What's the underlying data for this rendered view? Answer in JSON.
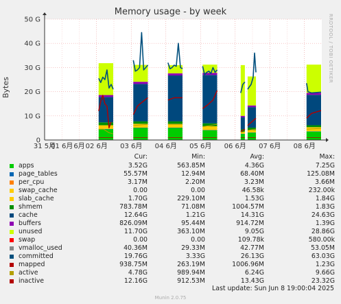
{
  "title": "Memory usage - by week",
  "watermark": "RRDTOOL / TOBI OETIKER",
  "ylabel": "Bytes",
  "legend_headers": {
    "cur": "Cur:",
    "min": "Min:",
    "avg": "Avg:",
    "max": "Max:"
  },
  "legend": [
    {
      "name": "apps",
      "color": "#00cc00",
      "cur": "3.52G",
      "min": "563.85M",
      "avg": "4.36G",
      "max": "7.25G"
    },
    {
      "name": "page_tables",
      "color": "#0066b3",
      "cur": "55.57M",
      "min": "12.94M",
      "avg": "68.40M",
      "max": "125.08M"
    },
    {
      "name": "per_cpu",
      "color": "#ff8000",
      "cur": "3.17M",
      "min": "2.20M",
      "avg": "3.23M",
      "max": "3.66M"
    },
    {
      "name": "swap_cache",
      "color": "#ffcc00",
      "cur": "0.00",
      "min": "0.00",
      "avg": "46.58k",
      "max": "232.00k"
    },
    {
      "name": "slab_cache",
      "color": "#ffcc00",
      "cur": "1.70G",
      "min": "229.10M",
      "avg": "1.53G",
      "max": "1.84G"
    },
    {
      "name": "shmem",
      "color": "#008f00",
      "cur": "783.78M",
      "min": "71.08M",
      "avg": "1004.57M",
      "max": "1.83G"
    },
    {
      "name": "cache",
      "color": "#00487d",
      "cur": "12.64G",
      "min": "1.21G",
      "avg": "14.31G",
      "max": "24.63G"
    },
    {
      "name": "buffers",
      "color": "#8f00b3",
      "cur": "826.09M",
      "min": "95.44M",
      "avg": "914.72M",
      "max": "1.39G"
    },
    {
      "name": "unused",
      "color": "#ccff00",
      "cur": "11.70G",
      "min": "363.10M",
      "avg": "9.05G",
      "max": "28.86G"
    },
    {
      "name": "swap",
      "color": "#ff0000",
      "cur": "0.00",
      "min": "0.00",
      "avg": "109.78k",
      "max": "580.00k"
    },
    {
      "name": "vmalloc_used",
      "color": "#888888",
      "cur": "40.36M",
      "min": "29.33M",
      "avg": "42.77M",
      "max": "53.05M"
    },
    {
      "name": "committed",
      "color": "#004f7d",
      "cur": "19.76G",
      "min": "3.33G",
      "avg": "26.13G",
      "max": "63.03G"
    },
    {
      "name": "mapped",
      "color": "#b30000",
      "cur": "938.75M",
      "min": "263.19M",
      "avg": "1006.96M",
      "max": "1.23G"
    },
    {
      "name": "active",
      "color": "#b39f00",
      "cur": "4.78G",
      "min": "989.94M",
      "avg": "6.24G",
      "max": "9.66G"
    },
    {
      "name": "inactive",
      "color": "#b30000",
      "cur": "12.16G",
      "min": "912.53M",
      "avg": "13.43G",
      "max": "23.32G"
    }
  ],
  "last_update": "Last update:  Sun Jun  8 19:00:04 2025",
  "footer": "Munin 2.0.75",
  "chart_data": {
    "type": "area",
    "stacked": true,
    "yunit": "G",
    "ylim": [
      0,
      50
    ],
    "yticks": [
      {
        "v": 0,
        "label": "0"
      },
      {
        "v": 10,
        "label": "10 G"
      },
      {
        "v": 20,
        "label": "20 G"
      },
      {
        "v": 30,
        "label": "30 G"
      },
      {
        "v": 40,
        "label": "40 G"
      },
      {
        "v": 50,
        "label": "50 G"
      }
    ],
    "xlim": [
      0,
      8
    ],
    "xticks": [
      {
        "v": 0,
        "label": "31 5月",
        "major": false
      },
      {
        "v": 0.5,
        "label": "01 6月",
        "major": false
      },
      {
        "v": 1.0,
        "label": "",
        "major": false
      },
      {
        "v": 1.5,
        "label": "02 6月",
        "major": true
      },
      {
        "v": 2.0,
        "label": "",
        "major": false
      },
      {
        "v": 2.5,
        "label": "03 6月",
        "major": true
      },
      {
        "v": 3.0,
        "label": "",
        "major": false
      },
      {
        "v": 3.5,
        "label": "04 6月",
        "major": true
      },
      {
        "v": 4.0,
        "label": "",
        "major": false
      },
      {
        "v": 4.5,
        "label": "05 6月",
        "major": true
      },
      {
        "v": 5.0,
        "label": "",
        "major": false
      },
      {
        "v": 5.5,
        "label": "06 6月",
        "major": true
      },
      {
        "v": 6.0,
        "label": "",
        "major": false
      },
      {
        "v": 6.5,
        "label": "07 6月",
        "major": true
      },
      {
        "v": 7.0,
        "label": "",
        "major": false
      },
      {
        "v": 7.5,
        "label": "08 6月",
        "major": true
      }
    ],
    "xtick_labels_shown": [
      "31 5月",
      "01 6月",
      "6月",
      "02 6月",
      "03 6月",
      "04 6月",
      "05 6月",
      "06 6月",
      "07 6月",
      "08 6月"
    ],
    "segments": [
      {
        "x0": 1.56,
        "x1": 1.98,
        "stack": {
          "apps": 4.5,
          "page_tables": 0.1,
          "per_cpu": 0.0,
          "slab_cache": 1.5,
          "shmem": 1.2,
          "cache": 10.5,
          "buffers": 0.8,
          "unused": 13.2
        },
        "committed": [
          [
            1.56,
            25.5
          ],
          [
            1.62,
            23.8
          ],
          [
            1.68,
            26.0
          ],
          [
            1.74,
            25.0
          ],
          [
            1.8,
            29.0
          ],
          [
            1.86,
            21.5
          ],
          [
            1.92,
            23.0
          ],
          [
            1.98,
            21.0
          ]
        ],
        "inactive": [
          [
            1.56,
            12.0
          ],
          [
            1.62,
            16.0
          ],
          [
            1.68,
            18.5
          ],
          [
            1.74,
            15.0
          ],
          [
            1.8,
            14.0
          ],
          [
            1.86,
            5.0
          ],
          [
            1.92,
            7.5
          ]
        ],
        "active": [
          [
            1.56,
            4.5
          ],
          [
            1.7,
            4.5
          ],
          [
            1.86,
            3.0
          ],
          [
            1.98,
            2.5
          ]
        ],
        "mapped": [
          [
            1.56,
            1.0
          ],
          [
            1.98,
            1.0
          ]
        ]
      },
      {
        "x0": 2.56,
        "x1": 2.98,
        "stack": {
          "apps": 5.0,
          "page_tables": 0.1,
          "per_cpu": 0.0,
          "slab_cache": 1.6,
          "shmem": 1.0,
          "cache": 15.5,
          "buffers": 0.9,
          "unused": 7.0
        },
        "committed": [
          [
            2.56,
            33.0
          ],
          [
            2.62,
            28.5
          ],
          [
            2.68,
            29.0
          ],
          [
            2.74,
            30.0
          ],
          [
            2.8,
            44.5
          ],
          [
            2.86,
            29.0
          ],
          [
            2.92,
            30.0
          ],
          [
            2.98,
            31.0
          ]
        ],
        "inactive": [
          [
            2.56,
            10.5
          ],
          [
            2.68,
            14.0
          ],
          [
            2.8,
            15.5
          ],
          [
            2.98,
            17.5
          ]
        ],
        "active": [
          [
            2.56,
            6.0
          ],
          [
            2.98,
            6.5
          ]
        ],
        "mapped": [
          [
            2.56,
            1.0
          ],
          [
            2.98,
            1.0
          ]
        ]
      },
      {
        "x0": 3.56,
        "x1": 3.98,
        "stack": {
          "apps": 5.0,
          "page_tables": 0.1,
          "per_cpu": 0.0,
          "slab_cache": 1.6,
          "shmem": 1.0,
          "cache": 19.0,
          "buffers": 0.9,
          "unused": 3.4
        },
        "committed": [
          [
            3.56,
            32.0
          ],
          [
            3.62,
            29.5
          ],
          [
            3.68,
            30.0
          ],
          [
            3.74,
            31.0
          ],
          [
            3.8,
            30.5
          ],
          [
            3.86,
            40.0
          ],
          [
            3.92,
            30.0
          ],
          [
            3.98,
            29.5
          ]
        ],
        "inactive": [
          [
            3.56,
            16.5
          ],
          [
            3.74,
            17.5
          ],
          [
            3.98,
            17.5
          ]
        ],
        "active": [
          [
            3.56,
            6.5
          ],
          [
            3.98,
            6.5
          ]
        ],
        "mapped": [
          [
            3.56,
            1.0
          ],
          [
            3.98,
            1.0
          ]
        ]
      },
      {
        "x0": 4.56,
        "x1": 4.98,
        "stack": {
          "apps": 4.0,
          "page_tables": 0.1,
          "per_cpu": 0.0,
          "slab_cache": 1.6,
          "shmem": 1.2,
          "cache": 20.0,
          "buffers": 0.9,
          "unused": 3.4
        },
        "committed": [
          [
            4.56,
            30.5
          ],
          [
            4.62,
            27.0
          ],
          [
            4.68,
            28.0
          ],
          [
            4.74,
            28.5
          ],
          [
            4.8,
            27.5
          ],
          [
            4.86,
            30.0
          ],
          [
            4.92,
            28.0
          ],
          [
            4.98,
            29.0
          ]
        ],
        "inactive": [
          [
            4.56,
            13.0
          ],
          [
            4.7,
            14.5
          ],
          [
            4.86,
            16.5
          ],
          [
            4.98,
            20.5
          ]
        ],
        "active": [
          [
            4.56,
            5.5
          ],
          [
            4.98,
            6.5
          ]
        ],
        "mapped": [
          [
            4.56,
            1.0
          ],
          [
            4.98,
            1.0
          ]
        ]
      },
      {
        "x0": 5.66,
        "x1": 5.78,
        "stack": {
          "apps": 2.5,
          "page_tables": 0.1,
          "per_cpu": 0.0,
          "slab_cache": 0.8,
          "shmem": 1.0,
          "cache": 5.0,
          "buffers": 0.6,
          "unused": 21.0
        },
        "committed": [
          [
            5.66,
            19.5
          ],
          [
            5.72,
            23.0
          ],
          [
            5.78,
            24.0
          ]
        ],
        "inactive": [
          [
            5.66,
            3.5
          ],
          [
            5.78,
            4.5
          ]
        ],
        "active": [
          [
            5.66,
            3.0
          ],
          [
            5.78,
            3.5
          ]
        ],
        "mapped": [
          [
            5.66,
            1.0
          ],
          [
            5.78,
            1.0
          ]
        ]
      },
      {
        "x0": 5.86,
        "x1": 6.1,
        "stack": {
          "apps": 3.0,
          "page_tables": 0.1,
          "per_cpu": 0.0,
          "slab_cache": 1.0,
          "shmem": 1.0,
          "cache": 8.5,
          "buffers": 0.7,
          "unused": 12.0
        },
        "committed": [
          [
            5.86,
            21.0
          ],
          [
            5.96,
            23.0
          ],
          [
            6.02,
            26.0
          ],
          [
            6.06,
            36.0
          ],
          [
            6.1,
            28.0
          ]
        ],
        "inactive": [
          [
            5.86,
            6.0
          ],
          [
            6.1,
            9.0
          ]
        ],
        "active": [
          [
            5.86,
            4.0
          ],
          [
            6.1,
            4.5
          ]
        ],
        "mapped": [
          [
            5.86,
            1.0
          ],
          [
            6.1,
            1.0
          ]
        ]
      },
      {
        "x0": 7.56,
        "x1": 7.98,
        "stack": {
          "apps": 3.5,
          "page_tables": 0.1,
          "per_cpu": 0.0,
          "slab_cache": 1.7,
          "shmem": 0.8,
          "cache": 12.6,
          "buffers": 0.8,
          "unused": 11.7
        },
        "committed": [
          [
            7.56,
            23.5
          ],
          [
            7.6,
            20.0
          ],
          [
            7.7,
            19.5
          ],
          [
            7.98,
            19.8
          ]
        ],
        "inactive": [
          [
            7.56,
            9.0
          ],
          [
            7.7,
            11.0
          ],
          [
            7.98,
            12.2
          ]
        ],
        "active": [
          [
            7.56,
            4.5
          ],
          [
            7.98,
            4.8
          ]
        ],
        "mapped": [
          [
            7.56,
            1.0
          ],
          [
            7.98,
            1.0
          ]
        ]
      }
    ]
  }
}
